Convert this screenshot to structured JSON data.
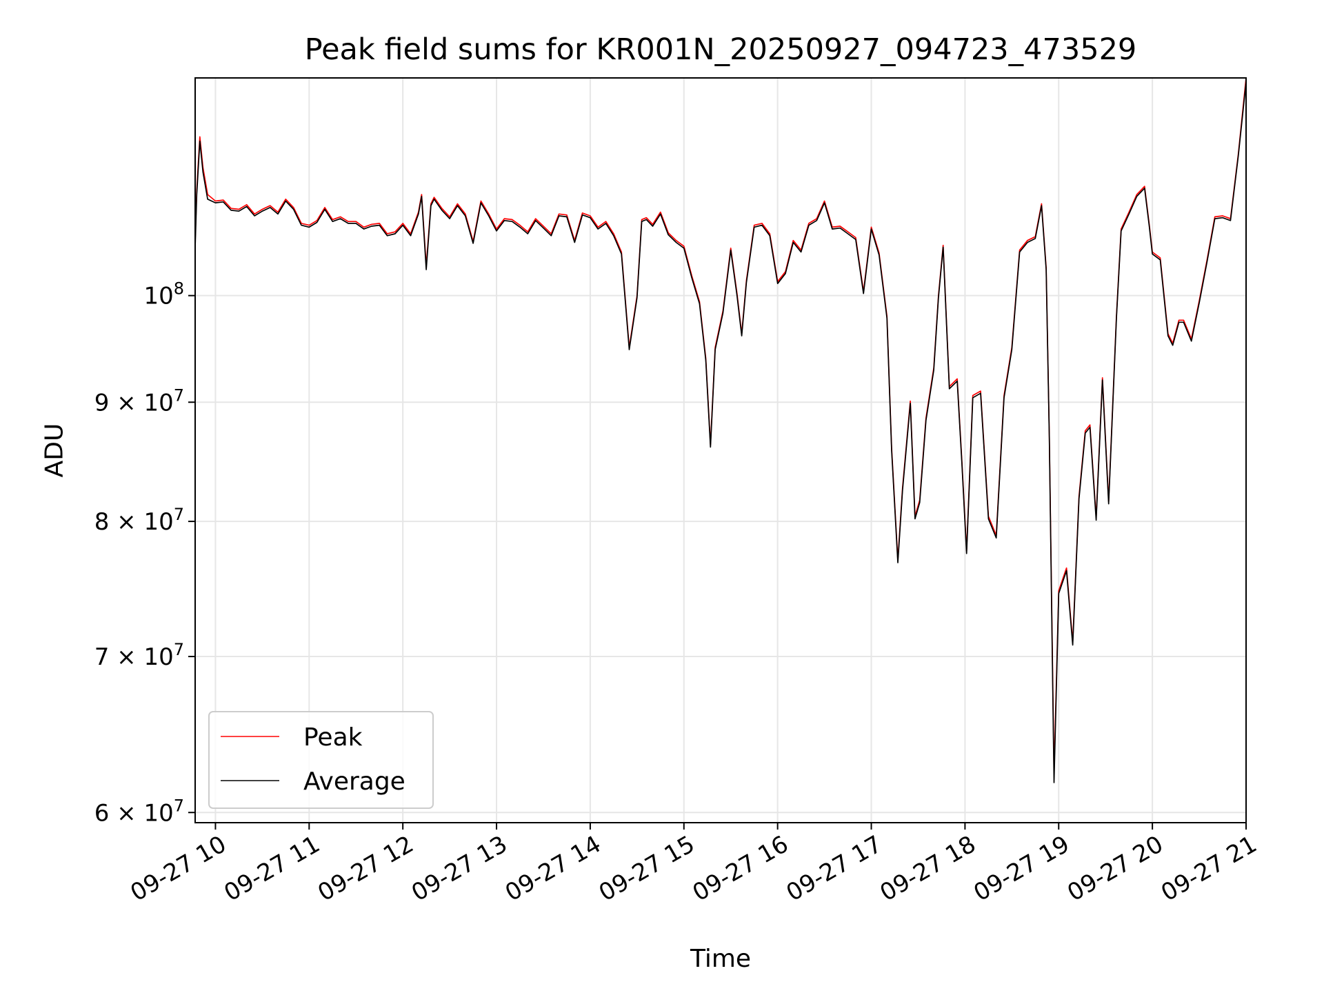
{
  "chart_data": {
    "type": "line",
    "title": "Peak field sums for KR001N_20250927_094723_473529",
    "xlabel": "Time",
    "ylabel": "ADU",
    "yscale": "log",
    "xlim": [
      "2025-09-27 09:47",
      "2025-09-27 21:00"
    ],
    "ylim": [
      59400000,
      124000000
    ],
    "grid": true,
    "legend_placement": "lower-left",
    "x_ticks": [
      "2025-09-27 10:00",
      "2025-09-27 11:00",
      "2025-09-27 12:00",
      "2025-09-27 13:00",
      "2025-09-27 14:00",
      "2025-09-27 15:00",
      "2025-09-27 16:00",
      "2025-09-27 17:00",
      "2025-09-27 18:00",
      "2025-09-27 19:00",
      "2025-09-27 20:00",
      "2025-09-27 21:00"
    ],
    "x_tick_labels": [
      "09-27 10",
      "09-27 11",
      "09-27 12",
      "09-27 13",
      "09-27 14",
      "09-27 15",
      "09-27 16",
      "09-27 17",
      "09-27 18",
      "09-27 19",
      "09-27 20",
      "09-27 21"
    ],
    "y_ticks": [
      60000000,
      70000000,
      80000000,
      90000000,
      100000000
    ],
    "y_tick_labels": [
      {
        "base": "6 × 10",
        "exp": "7"
      },
      {
        "base": "7 × 10",
        "exp": "7"
      },
      {
        "base": "8 × 10",
        "exp": "7"
      },
      {
        "base": "9 × 10",
        "exp": "7"
      },
      {
        "base": "10",
        "exp": "8"
      }
    ],
    "x": [
      "2025-09-27 09:47",
      "2025-09-27 09:48",
      "2025-09-27 09:50",
      "2025-09-27 09:52",
      "2025-09-27 09:55",
      "2025-09-27 10:00",
      "2025-09-27 10:05",
      "2025-09-27 10:10",
      "2025-09-27 10:15",
      "2025-09-27 10:20",
      "2025-09-27 10:25",
      "2025-09-27 10:30",
      "2025-09-27 10:35",
      "2025-09-27 10:40",
      "2025-09-27 10:45",
      "2025-09-27 10:50",
      "2025-09-27 10:55",
      "2025-09-27 11:00",
      "2025-09-27 11:05",
      "2025-09-27 11:10",
      "2025-09-27 11:15",
      "2025-09-27 11:20",
      "2025-09-27 11:25",
      "2025-09-27 11:30",
      "2025-09-27 11:35",
      "2025-09-27 11:40",
      "2025-09-27 11:45",
      "2025-09-27 11:50",
      "2025-09-27 11:55",
      "2025-09-27 12:00",
      "2025-09-27 12:05",
      "2025-09-27 12:10",
      "2025-09-27 12:12",
      "2025-09-27 12:15",
      "2025-09-27 12:18",
      "2025-09-27 12:20",
      "2025-09-27 12:25",
      "2025-09-27 12:30",
      "2025-09-27 12:35",
      "2025-09-27 12:40",
      "2025-09-27 12:45",
      "2025-09-27 12:50",
      "2025-09-27 12:55",
      "2025-09-27 13:00",
      "2025-09-27 13:05",
      "2025-09-27 13:10",
      "2025-09-27 13:15",
      "2025-09-27 13:20",
      "2025-09-27 13:25",
      "2025-09-27 13:30",
      "2025-09-27 13:35",
      "2025-09-27 13:40",
      "2025-09-27 13:45",
      "2025-09-27 13:50",
      "2025-09-27 13:55",
      "2025-09-27 14:00",
      "2025-09-27 14:05",
      "2025-09-27 14:10",
      "2025-09-27 14:15",
      "2025-09-27 14:20",
      "2025-09-27 14:25",
      "2025-09-27 14:30",
      "2025-09-27 14:33",
      "2025-09-27 14:36",
      "2025-09-27 14:40",
      "2025-09-27 14:45",
      "2025-09-27 14:50",
      "2025-09-27 14:55",
      "2025-09-27 15:00",
      "2025-09-27 15:05",
      "2025-09-27 15:10",
      "2025-09-27 15:14",
      "2025-09-27 15:17",
      "2025-09-27 15:20",
      "2025-09-27 15:25",
      "2025-09-27 15:30",
      "2025-09-27 15:34",
      "2025-09-27 15:37",
      "2025-09-27 15:40",
      "2025-09-27 15:45",
      "2025-09-27 15:50",
      "2025-09-27 15:55",
      "2025-09-27 16:00",
      "2025-09-27 16:05",
      "2025-09-27 16:10",
      "2025-09-27 16:15",
      "2025-09-27 16:20",
      "2025-09-27 16:25",
      "2025-09-27 16:30",
      "2025-09-27 16:35",
      "2025-09-27 16:40",
      "2025-09-27 16:45",
      "2025-09-27 16:50",
      "2025-09-27 16:55",
      "2025-09-27 17:00",
      "2025-09-27 17:05",
      "2025-09-27 17:10",
      "2025-09-27 17:13",
      "2025-09-27 17:17",
      "2025-09-27 17:20",
      "2025-09-27 17:25",
      "2025-09-27 17:28",
      "2025-09-27 17:31",
      "2025-09-27 17:35",
      "2025-09-27 17:40",
      "2025-09-27 17:43",
      "2025-09-27 17:46",
      "2025-09-27 17:50",
      "2025-09-27 17:55",
      "2025-09-27 17:58",
      "2025-09-27 18:01",
      "2025-09-27 18:05",
      "2025-09-27 18:10",
      "2025-09-27 18:15",
      "2025-09-27 18:20",
      "2025-09-27 18:25",
      "2025-09-27 18:30",
      "2025-09-27 18:35",
      "2025-09-27 18:40",
      "2025-09-27 18:45",
      "2025-09-27 18:49",
      "2025-09-27 18:52",
      "2025-09-27 18:54",
      "2025-09-27 18:57",
      "2025-09-27 19:00",
      "2025-09-27 19:05",
      "2025-09-27 19:09",
      "2025-09-27 19:13",
      "2025-09-27 19:17",
      "2025-09-27 19:20",
      "2025-09-27 19:24",
      "2025-09-27 19:28",
      "2025-09-27 19:32",
      "2025-09-27 19:37",
      "2025-09-27 19:40",
      "2025-09-27 19:45",
      "2025-09-27 19:50",
      "2025-09-27 19:55",
      "2025-09-27 19:58",
      "2025-09-27 20:00",
      "2025-09-27 20:05",
      "2025-09-27 20:10",
      "2025-09-27 20:13",
      "2025-09-27 20:17",
      "2025-09-27 20:20",
      "2025-09-27 20:25",
      "2025-09-27 20:30",
      "2025-09-27 20:35",
      "2025-09-27 20:40",
      "2025-09-27 20:45",
      "2025-09-27 20:50",
      "2025-09-27 20:55",
      "2025-09-27 21:00"
    ],
    "series": [
      {
        "name": "Peak",
        "color": "#ff0000",
        "values": [
          105500000,
          111000000,
          117000000,
          113500000,
          110500000,
          109800000,
          109900000,
          109000000,
          108900000,
          109400000,
          108400000,
          108900000,
          109300000,
          108600000,
          110000000,
          109100000,
          107400000,
          107200000,
          107700000,
          109100000,
          107800000,
          108100000,
          107600000,
          107600000,
          107000000,
          107300000,
          107400000,
          106300000,
          106500000,
          107400000,
          106300000,
          108600000,
          110500000,
          103000000,
          109500000,
          110200000,
          109000000,
          108100000,
          109500000,
          108400000,
          105500000,
          109800000,
          108400000,
          106800000,
          107900000,
          107800000,
          107200000,
          106500000,
          107900000,
          107100000,
          106300000,
          108400000,
          108300000,
          105600000,
          108500000,
          108200000,
          107000000,
          107600000,
          106300000,
          104400000,
          95000000,
          100000000,
          107800000,
          108000000,
          107300000,
          108600000,
          106400000,
          105600000,
          105000000,
          102000000,
          99400000,
          94000000,
          86300000,
          95000000,
          98500000,
          104800000,
          100200000,
          96300000,
          101500000,
          107200000,
          107400000,
          106300000,
          101400000,
          102400000,
          105600000,
          104600000,
          107400000,
          107900000,
          109800000,
          107000000,
          107100000,
          106500000,
          105900000,
          100400000,
          107000000,
          104300000,
          98000000,
          86000000,
          77000000,
          82700000,
          90100000,
          80400000,
          81700000,
          88600000,
          93100000,
          100000000,
          105100000,
          91400000,
          92100000,
          84900000,
          77700000,
          90600000,
          91000000,
          80400000,
          78900000,
          90600000,
          95000000,
          104600000,
          105600000,
          106000000,
          109500000,
          102800000,
          87000000,
          62400000,
          74700000,
          76400000,
          71000000,
          82000000,
          87500000,
          88000000,
          80300000,
          92200000,
          81600000,
          98000000,
          106800000,
          108600000,
          110500000,
          111400000,
          107300000,
          104400000,
          103800000,
          96300000,
          95400000,
          97600000,
          97600000,
          95800000,
          99500000,
          103600000,
          108100000,
          108200000,
          107900000,
          115000000,
          124000000
        ]
      },
      {
        "name": "Average",
        "color": "#000000",
        "values": [
          104800000,
          110500000,
          116500000,
          113000000,
          110000000,
          109600000,
          109700000,
          108800000,
          108700000,
          109200000,
          108200000,
          108700000,
          109100000,
          108400000,
          109800000,
          108900000,
          107200000,
          107000000,
          107500000,
          108900000,
          107600000,
          107900000,
          107400000,
          107400000,
          106800000,
          107100000,
          107200000,
          106100000,
          106300000,
          107200000,
          106100000,
          108400000,
          110300000,
          102600000,
          109300000,
          110000000,
          108800000,
          107900000,
          109300000,
          108200000,
          105300000,
          109600000,
          108200000,
          106600000,
          107700000,
          107600000,
          107000000,
          106300000,
          107700000,
          106900000,
          106100000,
          108200000,
          108100000,
          105400000,
          108300000,
          108000000,
          106800000,
          107400000,
          106100000,
          104200000,
          94800000,
          99800000,
          107600000,
          107800000,
          107100000,
          108400000,
          106200000,
          105400000,
          104800000,
          101800000,
          99200000,
          93800000,
          86100000,
          94800000,
          98300000,
          104600000,
          100000000,
          96100000,
          101300000,
          107000000,
          107200000,
          106100000,
          101200000,
          102200000,
          105400000,
          104400000,
          107200000,
          107700000,
          109600000,
          106800000,
          106900000,
          106300000,
          105700000,
          100200000,
          106800000,
          104100000,
          97800000,
          85800000,
          76800000,
          82500000,
          89900000,
          80200000,
          81500000,
          88400000,
          92900000,
          99800000,
          104900000,
          91200000,
          91900000,
          84700000,
          77500000,
          90400000,
          90800000,
          80200000,
          78700000,
          90400000,
          94800000,
          104400000,
          105400000,
          105800000,
          109300000,
          102600000,
          86800000,
          61800000,
          74500000,
          76200000,
          70800000,
          81800000,
          87300000,
          87800000,
          80100000,
          92000000,
          81400000,
          97800000,
          106600000,
          108400000,
          110300000,
          111200000,
          107100000,
          104200000,
          103600000,
          96100000,
          95200000,
          97400000,
          97400000,
          95600000,
          99300000,
          103400000,
          107900000,
          108000000,
          107700000,
          114800000,
          123500000
        ]
      }
    ]
  }
}
